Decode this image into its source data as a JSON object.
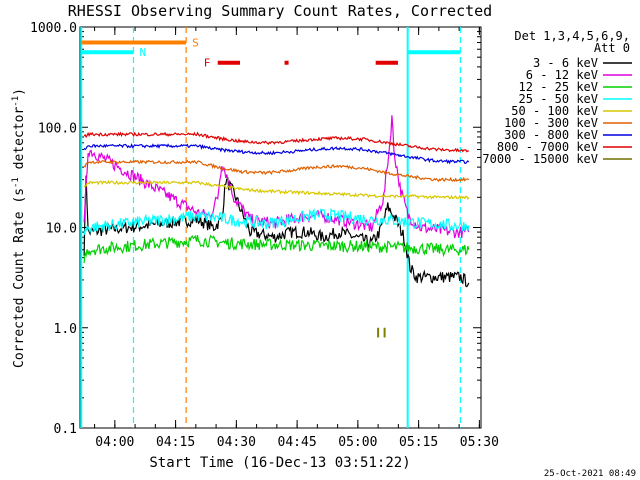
{
  "chart_data": {
    "type": "line",
    "title": "RHESSI Observing Summary Count Rates, Corrected",
    "xlabel": "Start Time (16-Dec-13 03:51:22)",
    "ylabel": "Corrected Count Rate (s⁻¹ detector⁻¹)",
    "ylabel_parts": {
      "pre": "Corrected Count Rate (s",
      "sup1": "-1",
      "mid": " detector",
      "sup2": "-1",
      "post": ")"
    },
    "timestamp": "25-Oct-2021 08:49",
    "y_scale": "log",
    "ylim": [
      0.1,
      1000
    ],
    "xlim_minutes": [
      0,
      99
    ],
    "y_ticks": [
      {
        "v": 1000,
        "label": "1000.0"
      },
      {
        "v": 100,
        "label": "100.0"
      },
      {
        "v": 10,
        "label": "10.0"
      },
      {
        "v": 1,
        "label": "1.0"
      },
      {
        "v": 0.1,
        "label": "0.1"
      }
    ],
    "x_ticks": [
      {
        "min": 8.6,
        "label": "04:00"
      },
      {
        "min": 23.6,
        "label": "04:15"
      },
      {
        "min": 38.6,
        "label": "04:30"
      },
      {
        "min": 53.6,
        "label": "04:45"
      },
      {
        "min": 68.6,
        "label": "05:00"
      },
      {
        "min": 83.6,
        "label": "05:15"
      },
      {
        "min": 98.6,
        "label": "05:30"
      }
    ],
    "legend": {
      "header1": "Det 1,3,4,5,6,9,",
      "header2": "Att 0",
      "position": "right"
    },
    "series": [
      {
        "name": "3 - 6 keV",
        "color": "#000000",
        "x": [
          1,
          1.5,
          2,
          29,
          31,
          33,
          35,
          36,
          38,
          42,
          48,
          52,
          56,
          60,
          64,
          68,
          72,
          74,
          76,
          78,
          80,
          81.5,
          83,
          85,
          90,
          94,
          96
        ],
        "y": [
          6,
          35,
          9,
          12,
          11,
          10,
          12,
          30,
          22,
          9,
          8,
          9,
          9,
          8,
          9,
          8,
          7,
          9,
          16,
          12,
          8,
          4,
          3.2,
          3.2,
          3.2,
          3.2,
          2.8
        ]
      },
      {
        "name": "6 - 12 keV",
        "color": "#e000e0",
        "x": [
          1,
          2,
          29,
          32,
          34,
          35,
          36,
          38,
          42,
          48,
          52,
          56,
          60,
          64,
          68,
          72,
          75,
          76.5,
          77,
          77.5,
          79,
          81,
          84,
          88,
          92,
          96
        ],
        "y": [
          10,
          60,
          14,
          13,
          20,
          45,
          35,
          20,
          12,
          11,
          12,
          13,
          13,
          12,
          11,
          10,
          20,
          70,
          130,
          60,
          25,
          13,
          10,
          9.5,
          9,
          9
        ]
      },
      {
        "name": "12 - 25 keV",
        "color": "#00d000",
        "x": [
          1,
          2,
          29,
          36,
          44,
          52,
          60,
          68,
          76,
          84,
          90,
          96
        ],
        "y": [
          5,
          6,
          7.5,
          7,
          6.8,
          6.7,
          6.6,
          6.5,
          6.4,
          6.2,
          6,
          6
        ]
      },
      {
        "name": "25 - 50 keV",
        "color": "#00ffff",
        "x": [
          1,
          2,
          29,
          34,
          40,
          46,
          52,
          56,
          60,
          64,
          68,
          72,
          76,
          80,
          84,
          88,
          92,
          96
        ],
        "y": [
          9,
          10,
          13,
          12.5,
          11.5,
          11,
          12,
          13,
          13.5,
          13,
          12.5,
          12,
          12,
          11.5,
          11,
          10.8,
          10.5,
          10.5
        ]
      },
      {
        "name": "50 - 100 keV",
        "color": "#d8c800",
        "x": [
          1,
          2,
          29,
          34,
          40,
          46,
          52,
          58,
          64,
          70,
          76,
          82,
          88,
          96
        ],
        "y": [
          25,
          28,
          28,
          26,
          24,
          23,
          22.5,
          22,
          21.5,
          21,
          20.5,
          20.5,
          20,
          20
        ]
      },
      {
        "name": "100 - 300 keV",
        "color": "#e06000",
        "x": [
          1,
          2,
          29,
          34,
          40,
          46,
          52,
          58,
          64,
          70,
          76,
          82,
          88,
          96
        ],
        "y": [
          40,
          45,
          45,
          40,
          36,
          35,
          37,
          40,
          41,
          39,
          35,
          32,
          30,
          30
        ]
      },
      {
        "name": "300 - 800 keV",
        "color": "#0000e0",
        "x": [
          1,
          2,
          29,
          34,
          40,
          46,
          52,
          58,
          64,
          70,
          76,
          82,
          88,
          96
        ],
        "y": [
          60,
          65,
          65,
          60,
          57,
          55,
          57,
          60,
          62,
          60,
          55,
          50,
          46,
          45
        ]
      },
      {
        "name": "800 - 7000 keV",
        "color": "#e00000",
        "x": [
          1,
          2,
          29,
          34,
          40,
          46,
          52,
          58,
          64,
          70,
          76,
          82,
          88,
          96
        ],
        "y": [
          80,
          85,
          85,
          78,
          72,
          70,
          72,
          76,
          78,
          76,
          70,
          64,
          60,
          58
        ]
      },
      {
        "name": "7000 - 15000 keV",
        "color": "#707000",
        "x": [],
        "y": []
      }
    ],
    "markers": {
      "vlines": [
        {
          "min": 0.3,
          "color": "#00ffff",
          "style": "solid"
        },
        {
          "min": 13.2,
          "color": "#00ffff",
          "style": "dashed"
        },
        {
          "min": 26.2,
          "color": "#ff8000",
          "style": "dashed"
        },
        {
          "min": 80.9,
          "color": "#00ffff",
          "style": "solid"
        },
        {
          "min": 93.9,
          "color": "#00ffff",
          "style": "dashed"
        }
      ],
      "flags": [
        {
          "label": "S",
          "color": "#ff8000",
          "y": 700,
          "segments": [
            [
              0.3,
              26.2
            ]
          ]
        },
        {
          "label": "N",
          "color": "#00ffff",
          "y": 560,
          "segments": [
            [
              0.3,
              13.2
            ],
            [
              80.9,
              93.9
            ]
          ]
        },
        {
          "label": "F",
          "color": "#e00000",
          "y": 440,
          "segments": [
            [
              34,
              39.5
            ],
            [
              50.5,
              51.5
            ],
            [
              73,
              78.5
            ]
          ]
        }
      ],
      "ticks_annotation": {
        "color": "#808000",
        "x": [
          73.6,
          75.2
        ],
        "y_range": [
          0.8,
          1.0
        ]
      }
    }
  }
}
